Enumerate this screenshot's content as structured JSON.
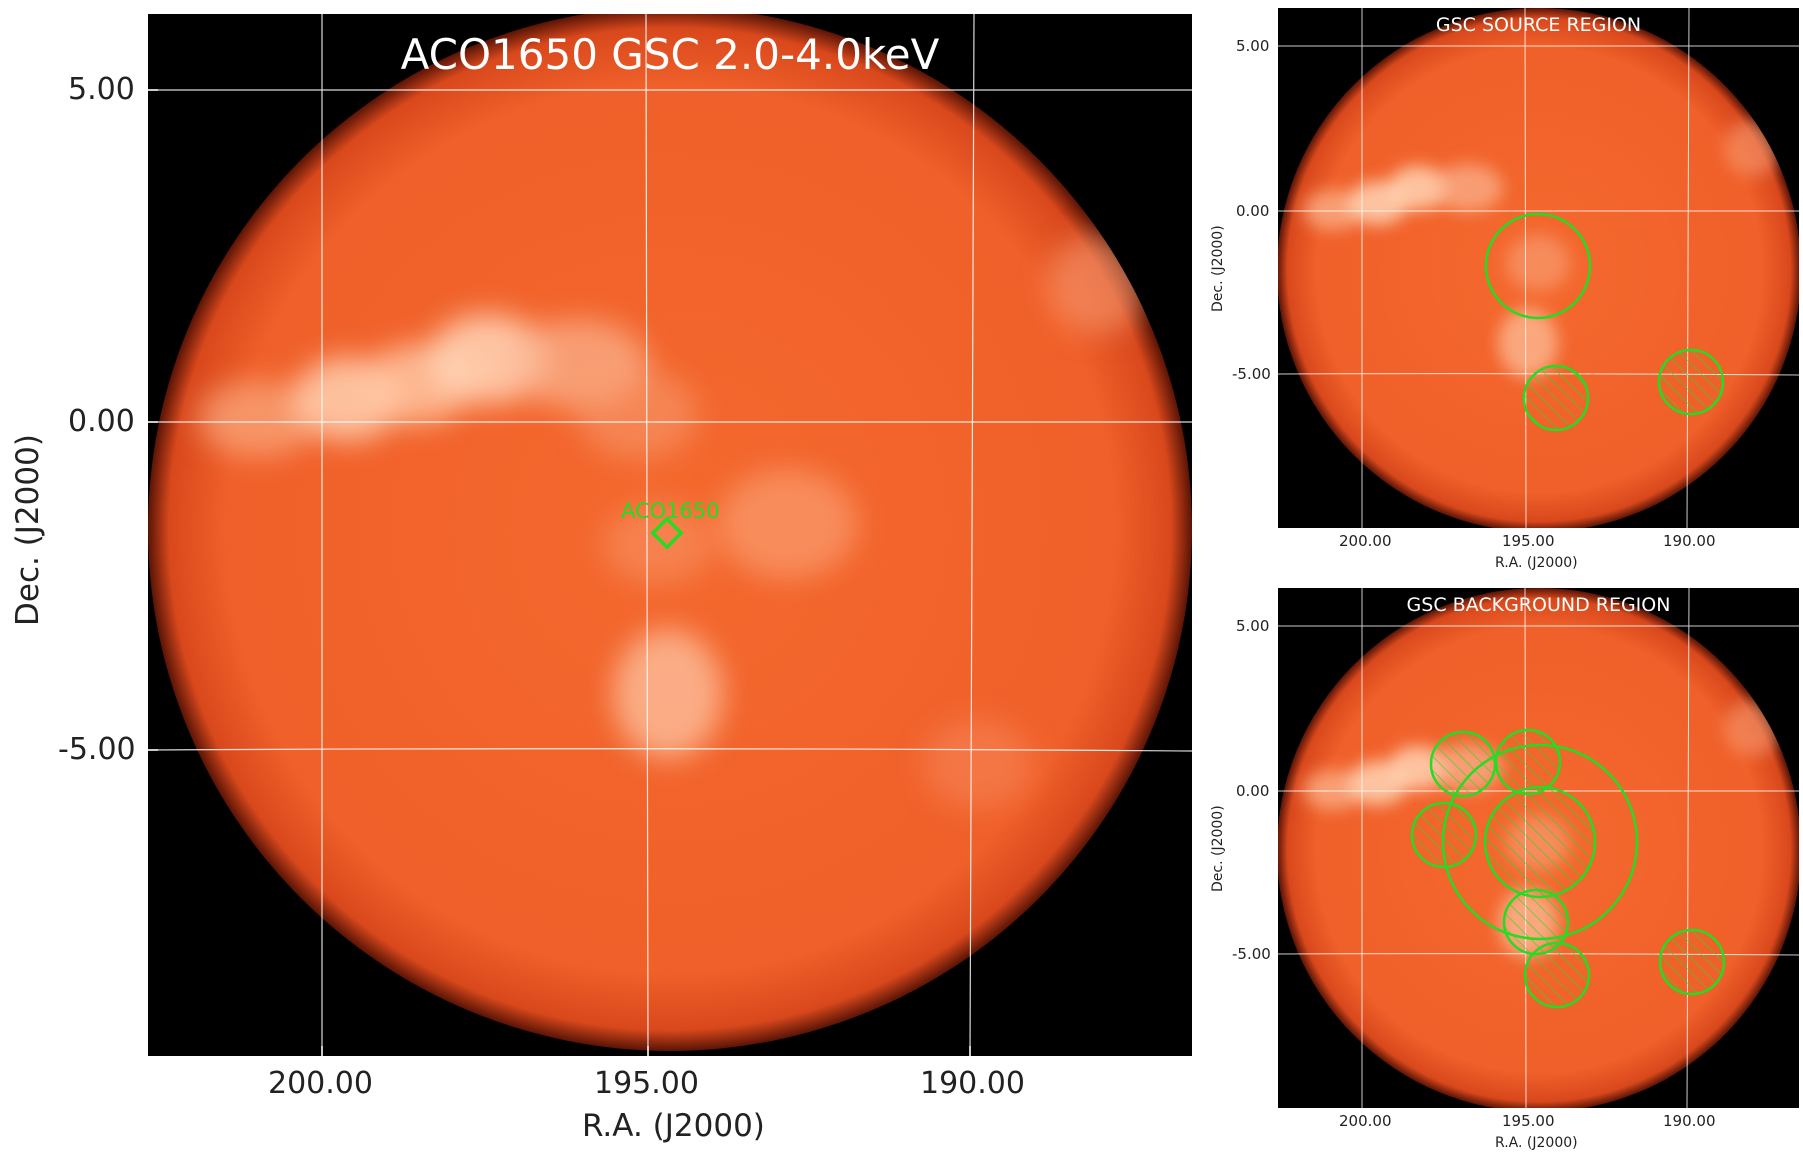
{
  "main_panel": {
    "title": "ACO1650 GSC 2.0-4.0keV",
    "xlabel": "R.A. (J2000)",
    "ylabel": "Dec. (J2000)",
    "x_ticks": [
      "200.00",
      "195.00",
      "190.00"
    ],
    "y_ticks": [
      "5.00",
      "0.00",
      "-5.00"
    ],
    "marker_label": "ACO1650",
    "colors": {
      "marker": "#22dd22",
      "grid": "#ffffff",
      "background": "#000000",
      "disk": "#f0622a"
    }
  },
  "source_panel": {
    "title": "GSC SOURCE REGION",
    "xlabel": "R.A. (J2000)",
    "ylabel": "Dec. (J2000)",
    "x_ticks": [
      "200.00",
      "195.00",
      "190.00"
    ],
    "y_ticks": [
      "5.00",
      "0.00",
      "-5.00"
    ]
  },
  "background_panel": {
    "title": "GSC BACKGROUND REGION",
    "xlabel": "R.A. (J2000)",
    "ylabel": "Dec. (J2000)",
    "x_ticks": [
      "200.00",
      "195.00",
      "190.00"
    ],
    "y_ticks": [
      "5.00",
      "0.00",
      "-5.00"
    ]
  }
}
